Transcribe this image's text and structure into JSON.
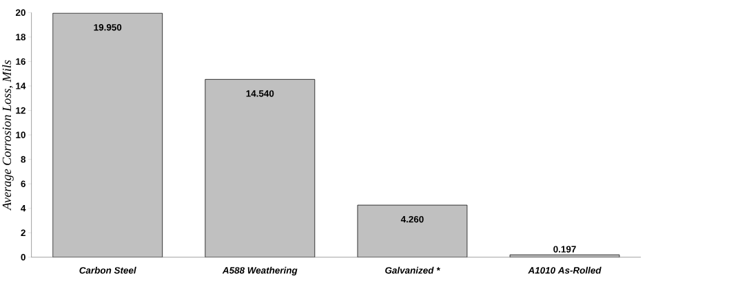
{
  "chart_data": {
    "type": "bar",
    "ylabel": "Average Corrosion Loss, Mils",
    "categories": [
      "Carbon Steel",
      "A588  Weathering",
      "Galvanized  *",
      "A1010 As-Rolled"
    ],
    "values": [
      19.95,
      14.54,
      4.26,
      0.197
    ],
    "value_labels": [
      "19.950",
      "14.540",
      "4.260",
      "0.197"
    ],
    "color": "#c0c0c0",
    "ylim": [
      0,
      20
    ],
    "yticks": [
      0,
      2,
      4,
      6,
      8,
      10,
      12,
      14,
      16,
      18,
      20
    ],
    "grid": false
  }
}
